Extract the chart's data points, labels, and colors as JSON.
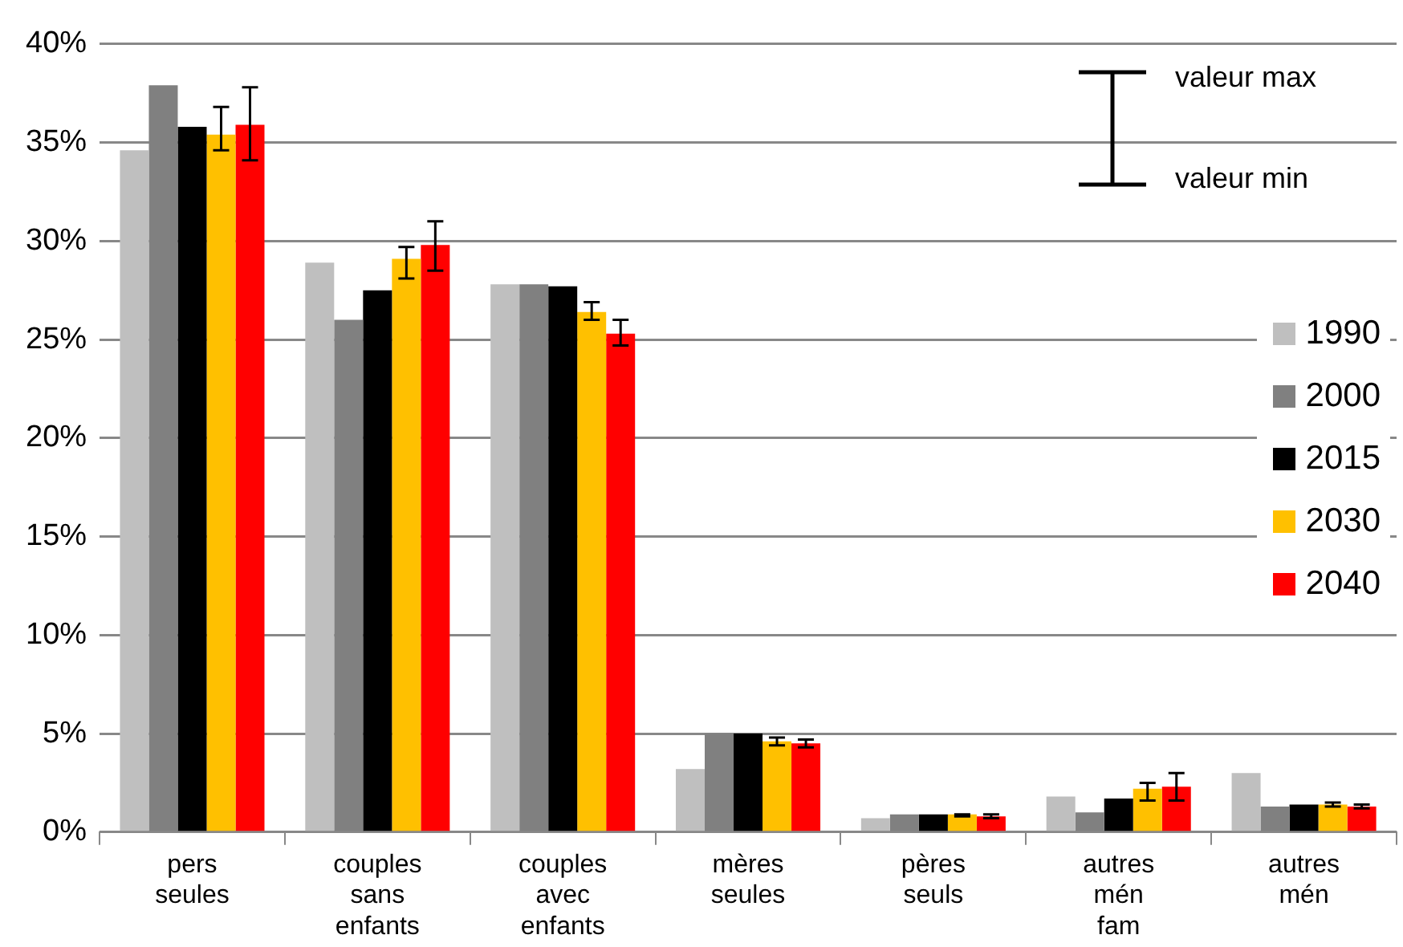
{
  "chart_data": {
    "type": "bar",
    "categories": [
      "pers seules",
      "couples sans enfants",
      "couples avec enfants",
      "mères seules",
      "pères seuls",
      "autres mén fam",
      "autres mén"
    ],
    "series": [
      {
        "name": "1990",
        "color": "#bfbfbf",
        "values": [
          34.6,
          28.9,
          27.8,
          3.2,
          0.7,
          1.8,
          3.0
        ]
      },
      {
        "name": "2000",
        "color": "#808080",
        "values": [
          37.9,
          26.0,
          27.8,
          5.0,
          0.9,
          1.0,
          1.3
        ]
      },
      {
        "name": "2015",
        "color": "#000000",
        "values": [
          35.8,
          27.5,
          27.7,
          5.0,
          0.9,
          1.7,
          1.4
        ]
      },
      {
        "name": "2030",
        "color": "#ffc000",
        "values": [
          35.4,
          29.1,
          26.4,
          4.6,
          0.9,
          2.2,
          1.4
        ],
        "errors": [
          [
            34.6,
            36.8
          ],
          [
            28.1,
            29.7
          ],
          [
            26.0,
            26.9
          ],
          [
            4.4,
            4.8
          ],
          [
            0.8,
            0.9
          ],
          [
            1.6,
            2.5
          ],
          [
            1.3,
            1.5
          ]
        ]
      },
      {
        "name": "2040",
        "color": "#ff0000",
        "values": [
          35.9,
          29.8,
          25.3,
          4.5,
          0.8,
          2.3,
          1.3
        ],
        "errors": [
          [
            34.1,
            37.8
          ],
          [
            28.5,
            31.0
          ],
          [
            24.7,
            26.0
          ],
          [
            4.3,
            4.7
          ],
          [
            0.7,
            0.9
          ],
          [
            1.6,
            3.0
          ],
          [
            1.2,
            1.4
          ]
        ]
      }
    ],
    "ylim": [
      0,
      40
    ],
    "yticks": [
      {
        "value": 0,
        "label": "0%"
      },
      {
        "value": 5,
        "label": "5%"
      },
      {
        "value": 10,
        "label": "10%"
      },
      {
        "value": 15,
        "label": "15%"
      },
      {
        "value": 20,
        "label": "20%"
      },
      {
        "value": 25,
        "label": "25%"
      },
      {
        "value": 30,
        "label": "30%"
      },
      {
        "value": 35,
        "label": "35%"
      },
      {
        "value": 40,
        "label": "40%"
      }
    ],
    "grid": "y",
    "legend": "right",
    "annotations": [
      "valeur max",
      "valeur min"
    ]
  }
}
